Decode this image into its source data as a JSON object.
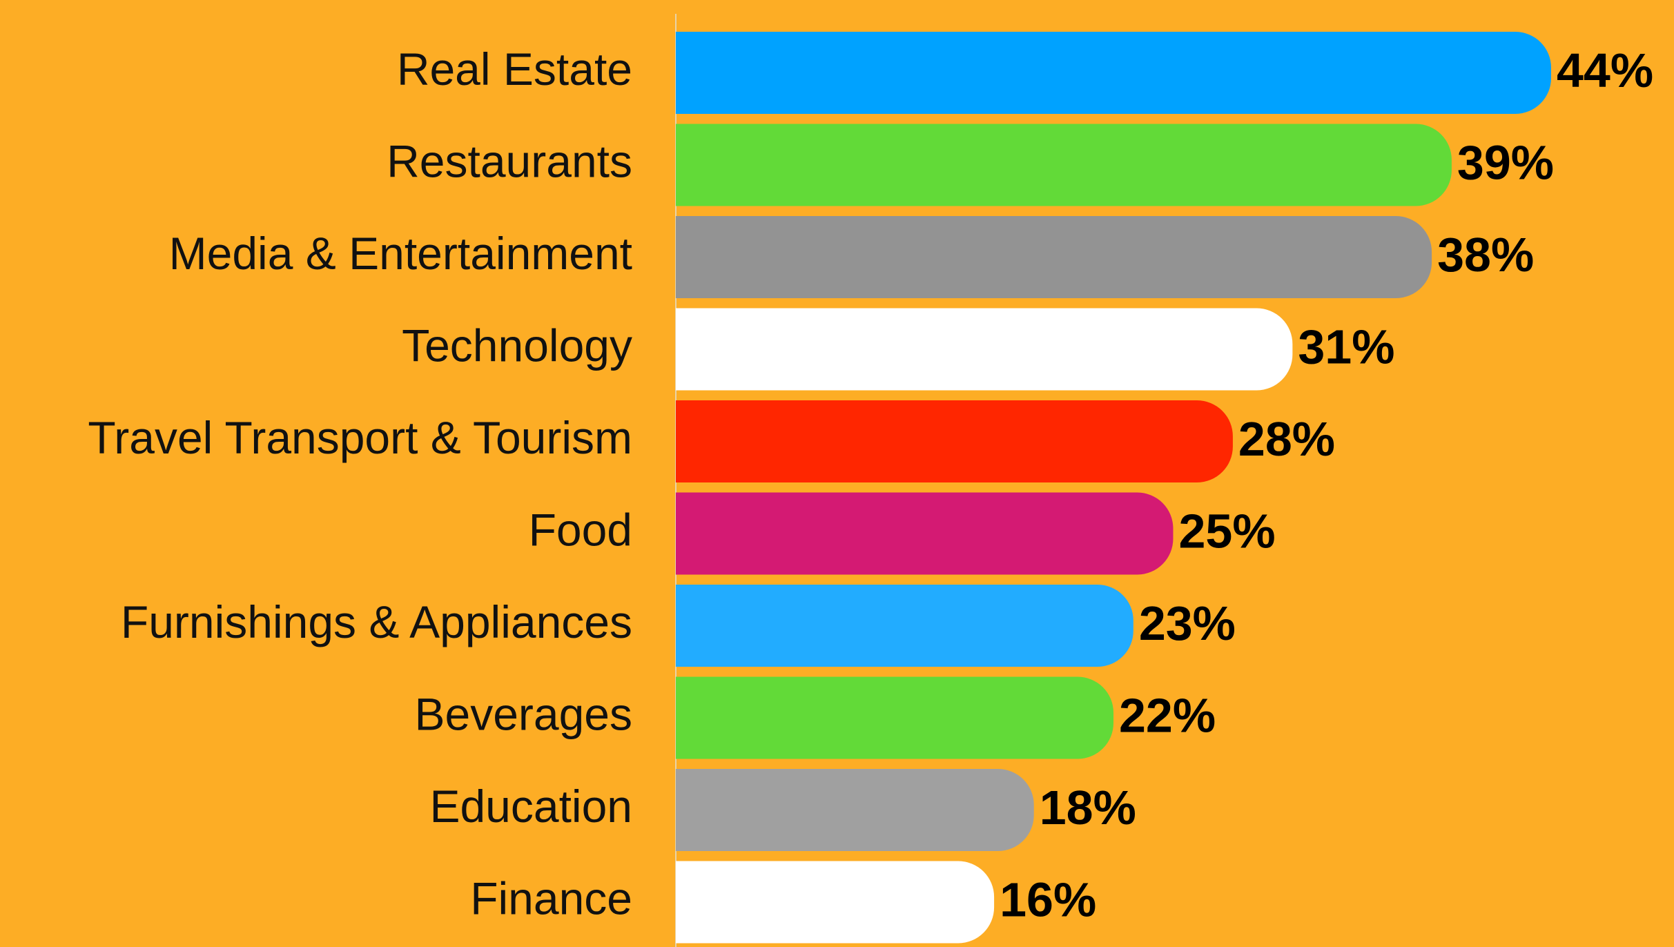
{
  "chart_data": {
    "type": "bar",
    "categories": [
      "Real Estate",
      "Restaurants",
      "Media & Entertainment",
      "Technology",
      "Travel Transport & Tourism",
      "Food",
      "Furnishings & Appliances",
      "Beverages",
      "Education",
      "Finance"
    ],
    "values": [
      44,
      39,
      38,
      31,
      28,
      25,
      23,
      22,
      18,
      16
    ],
    "value_labels": [
      "44%",
      "39%",
      "38%",
      "31%",
      "28%",
      "25%",
      "23%",
      "22%",
      "18%",
      "16%"
    ],
    "colors": [
      "#00a2ff",
      "#62da38",
      "#939393",
      "#ffffff",
      "#ff2600",
      "#d41a73",
      "#22acff",
      "#62da38",
      "#a0a0a0",
      "#ffffff"
    ],
    "orientation": "horizontal"
  }
}
